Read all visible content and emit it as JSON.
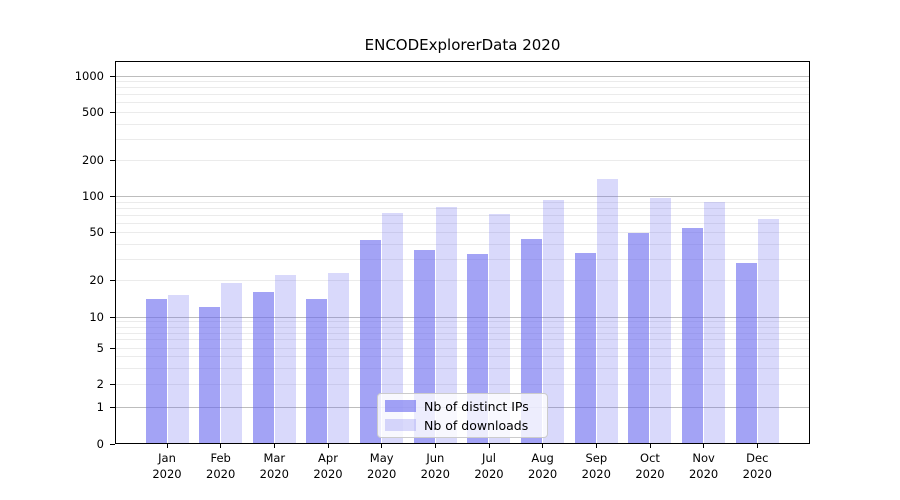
{
  "chart_data": {
    "type": "bar",
    "title": "ENCODExplorerData 2020",
    "categories": [
      "Jan",
      "Feb",
      "Mar",
      "Apr",
      "May",
      "Jun",
      "Jul",
      "Aug",
      "Sep",
      "Oct",
      "Nov",
      "Dec"
    ],
    "year": "2020",
    "series": [
      {
        "name": "Nb of distinct IPs",
        "color": "rgba(102,102,238,0.6)",
        "values": [
          14,
          12,
          16,
          14,
          43,
          36,
          33,
          44,
          34,
          49,
          54,
          28
        ]
      },
      {
        "name": "Nb of downloads",
        "color": "rgba(102,102,238,0.25)",
        "values": [
          15,
          19,
          22,
          23,
          73,
          81,
          71,
          93,
          138,
          97,
          89,
          64
        ]
      }
    ],
    "y_ticks": [
      0,
      1,
      2,
      5,
      10,
      20,
      50,
      100,
      200,
      500,
      1000
    ],
    "y_scale": "symlog",
    "ylim": [
      0,
      1300
    ],
    "xlabel": "",
    "ylabel": "",
    "grid": true,
    "legend_position": "lower center",
    "colors": {
      "bar_dark_rendered": "#a3a3f5",
      "bar_light_rendered": "#d9d9fb",
      "grid_major": "#bdbdbd",
      "grid_minor": "#ebebeb",
      "spine": "#000000"
    }
  }
}
